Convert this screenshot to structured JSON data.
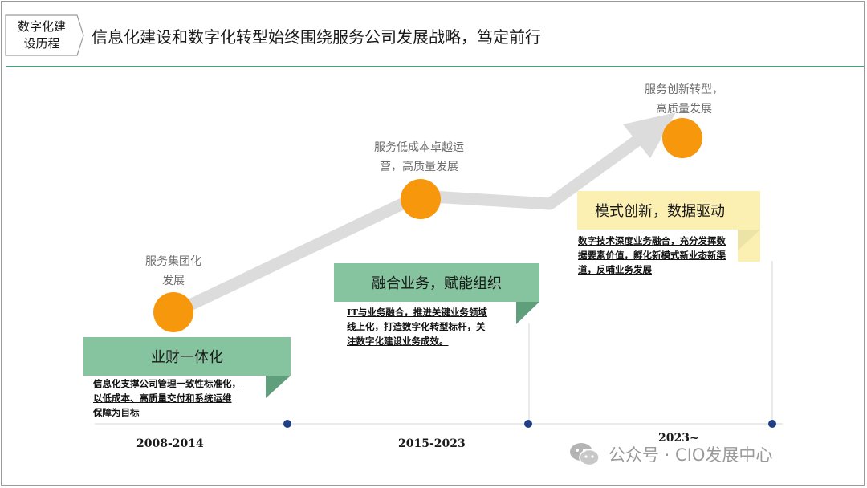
{
  "header": {
    "tag": "数字化建\n设历程",
    "headline": "信息化建设和数字化转型始终围绕服务公司发展战略，笃定前行"
  },
  "stages": [
    {
      "caption": "服务集团化\n发展",
      "title": "业财一体化",
      "description": "信息化支撑公司管理一致性标准化，\n以低成本、高质量交付和系统运维\n保障为目标",
      "period": "2008-2014"
    },
    {
      "caption": "服务低成本卓越运\n营，高质量发展",
      "title": "融合业务，赋能组织",
      "description": "IT与业务融合，推进关键业务领域\n线上化，打造数字化转型标杆，关\n注数字化建设业务成效。",
      "period": "2015-2023"
    },
    {
      "caption": "服务创新转型，\n高质量发展",
      "title": "模式创新，数据驱动",
      "description": "数字技术深度业务融合，充分发挥数\n据要素价值，孵化新模式新业态新渠\n道，反哺业务发展",
      "period": "2023~"
    }
  ],
  "watermark": {
    "text": "公众号 · CIO发展中心"
  },
  "colors": {
    "green_band": "#85c49f",
    "green_fold": "#5f9f7c",
    "yellow_band": "#fbefb2",
    "yellow_fold": "#ece3a6",
    "milestone_orange": "#f7970c",
    "arrow_grey": "#dcdcdc",
    "timeline_dot": "#1f3f86",
    "rule_green": "#4e9c7a"
  }
}
